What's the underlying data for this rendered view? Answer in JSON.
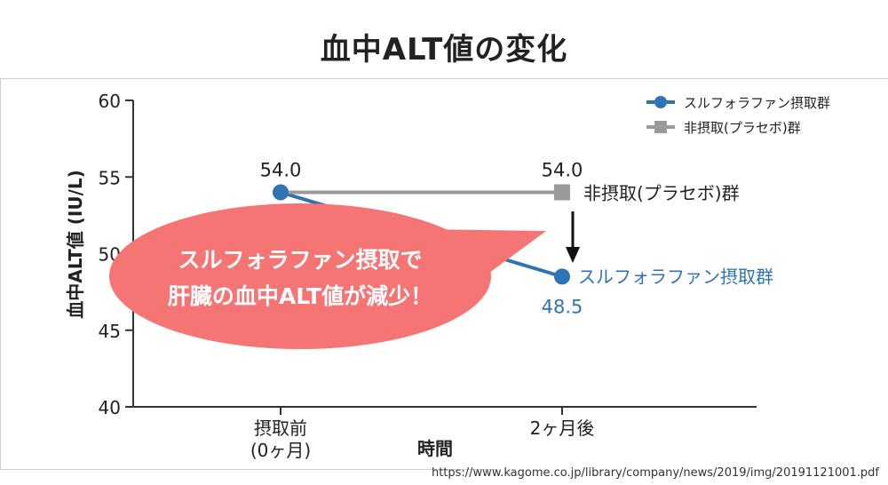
{
  "title": "血中ALT値の変化",
  "source_url": "https://www.kagome.co.jp/library/company/news/2019/img/20191121001.pdf",
  "callout": {
    "line1": "スルフォラファン摂取で",
    "line2": "肝臓の血中ALT値が減少！",
    "color": "#f57575"
  },
  "chart_data": {
    "type": "line",
    "title": "血中ALT値の変化",
    "xlabel": "時間",
    "ylabel": "血中ALT値 (IU/L)",
    "categories": [
      "摂取前\n(0ヶ月)",
      "2ヶ月後"
    ],
    "ylim": [
      40,
      60
    ],
    "yticks": [
      40,
      45,
      50,
      55,
      60
    ],
    "grid": false,
    "legend_position": "top-right",
    "series": [
      {
        "name": "スルフォラファン摂取群",
        "values": [
          54.0,
          48.5
        ],
        "labels": [
          "54.0",
          "48.5"
        ],
        "end_label": "スルフォラファン摂取群",
        "color": "#2f73b5",
        "marker": "circle"
      },
      {
        "name": "非摂取(プラセボ)群",
        "values": [
          54.0,
          54.0
        ],
        "labels": [
          "",
          "54.0"
        ],
        "end_label": "非摂取(プラセボ)群",
        "color": "#9a9a9a",
        "marker": "square"
      }
    ]
  }
}
